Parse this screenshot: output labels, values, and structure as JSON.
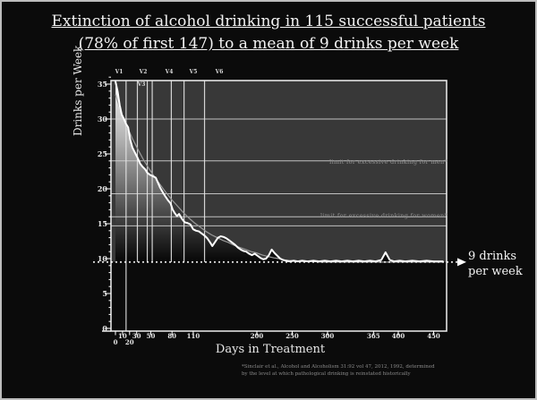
{
  "slide": {
    "title_line1": "Extinction of alcohol drinking in 115 successful patients",
    "title_line2": "(78% of first 147) to a mean of 9 drinks per week"
  },
  "chart_data": {
    "type": "line",
    "title": "Extinction of alcohol drinking in 115 successful patients (78% of first 147) to a mean of 9 drinks per week",
    "xlabel": "Days in Treatment",
    "ylabel": "Drinks per Week",
    "xlim": [
      0,
      465
    ],
    "ylim": [
      0,
      36
    ],
    "grid": "partial",
    "legend": "none",
    "y_ticks": [
      35,
      30,
      25,
      20,
      15,
      10,
      5,
      0
    ],
    "x_ticks": [
      {
        "day": 0,
        "label": "0",
        "row": 2
      },
      {
        "day": 10,
        "label": "10",
        "row": 1
      },
      {
        "day": 20,
        "label": "20",
        "row": 2
      },
      {
        "day": 30,
        "label": "30",
        "row": 1
      },
      {
        "day": 50,
        "label": "50",
        "row": 1
      },
      {
        "day": 80,
        "label": "80",
        "row": 1
      },
      {
        "day": 110,
        "label": "110",
        "row": 1
      },
      {
        "day": 200,
        "label": "200",
        "row": 1
      },
      {
        "day": 250,
        "label": "250",
        "row": 1
      },
      {
        "day": 300,
        "label": "300",
        "row": 1
      },
      {
        "day": 365,
        "label": "365",
        "row": 1
      },
      {
        "day": 400,
        "label": "400",
        "row": 1
      },
      {
        "day": 450,
        "label": "450",
        "row": 1
      }
    ],
    "visit_lines_days": [
      15,
      31,
      45,
      52,
      79,
      97,
      126
    ],
    "visit_labels_top": [
      {
        "text": "V1",
        "x": 131
      },
      {
        "text": "V2",
        "x": 158
      },
      {
        "text": "V4",
        "x": 187
      },
      {
        "text": "V5",
        "x": 214
      },
      {
        "text": "V6",
        "x": 243
      }
    ],
    "visit_label_inner": {
      "text": "V3",
      "x": 156,
      "y": 89
    },
    "gridline_values": [
      30,
      24,
      19.3,
      16,
      14.7
    ],
    "annotations": {
      "men_limit": {
        "text": "limit for excessive drinking for men*",
        "value": 24
      },
      "women_limit": {
        "text": "limit for excessive drinking for women*",
        "value": 16
      },
      "target_line": {
        "value": 9.5,
        "tick_label": "10"
      },
      "callout": {
        "line1": "9 drinks",
        "line2": "per week"
      }
    },
    "series": [
      {
        "name": "weekly mean drinks per week",
        "style": "jagged-white",
        "points": [
          [
            0,
            35.6
          ],
          [
            3,
            34
          ],
          [
            6,
            32
          ],
          [
            9,
            30.6
          ],
          [
            12,
            30
          ],
          [
            15,
            29.3
          ],
          [
            18,
            28.8
          ],
          [
            21,
            27
          ],
          [
            24,
            25.9
          ],
          [
            27,
            25.3
          ],
          [
            31,
            24.5
          ],
          [
            35,
            23.6
          ],
          [
            38,
            23.2
          ],
          [
            42,
            22.8
          ],
          [
            45,
            22.3
          ],
          [
            49,
            22
          ],
          [
            53,
            21.8
          ],
          [
            57,
            21.6
          ],
          [
            60,
            20.9
          ],
          [
            63,
            20.2
          ],
          [
            67,
            19.5
          ],
          [
            70,
            19
          ],
          [
            74,
            18.4
          ],
          [
            78,
            17.9
          ],
          [
            81,
            17
          ],
          [
            84,
            16.5
          ],
          [
            87,
            16.1
          ],
          [
            90,
            16.4
          ],
          [
            94,
            15.7
          ],
          [
            98,
            15.2
          ],
          [
            102,
            15.1
          ],
          [
            106,
            14.9
          ],
          [
            110,
            14.2
          ],
          [
            114,
            14
          ],
          [
            118,
            13.9
          ],
          [
            122,
            13.6
          ],
          [
            126,
            13.3
          ],
          [
            130,
            12.9
          ],
          [
            134,
            12.3
          ],
          [
            137,
            11.8
          ],
          [
            141,
            12.4
          ],
          [
            145,
            13
          ],
          [
            149,
            13.2
          ],
          [
            153,
            13.1
          ],
          [
            157,
            12.9
          ],
          [
            161,
            12.6
          ],
          [
            165,
            12.3
          ],
          [
            169,
            12
          ],
          [
            173,
            11.6
          ],
          [
            177,
            11.3
          ],
          [
            181,
            11.1
          ],
          [
            185,
            11
          ],
          [
            189,
            10.7
          ],
          [
            193,
            10.5
          ],
          [
            197,
            10.7
          ],
          [
            201,
            10.4
          ],
          [
            205,
            10.1
          ],
          [
            209,
            9.9
          ],
          [
            213,
            10
          ],
          [
            217,
            10.5
          ],
          [
            221,
            11.3
          ],
          [
            225,
            10.8
          ],
          [
            229,
            10.4
          ],
          [
            233,
            10
          ],
          [
            237,
            9.8
          ],
          [
            241,
            9.7
          ],
          [
            246,
            9.6
          ],
          [
            252,
            9.7
          ],
          [
            258,
            9.6
          ],
          [
            264,
            9.7
          ],
          [
            272,
            9.6
          ],
          [
            280,
            9.7
          ],
          [
            288,
            9.6
          ],
          [
            296,
            9.7
          ],
          [
            304,
            9.6
          ],
          [
            312,
            9.7
          ],
          [
            320,
            9.6
          ],
          [
            328,
            9.7
          ],
          [
            336,
            9.6
          ],
          [
            344,
            9.7
          ],
          [
            352,
            9.6
          ],
          [
            360,
            9.7
          ],
          [
            368,
            9.6
          ],
          [
            376,
            9.8
          ],
          [
            382,
            10.9
          ],
          [
            388,
            9.8
          ],
          [
            394,
            9.6
          ],
          [
            402,
            9.7
          ],
          [
            410,
            9.6
          ],
          [
            420,
            9.7
          ],
          [
            430,
            9.6
          ],
          [
            440,
            9.7
          ],
          [
            450,
            9.6
          ],
          [
            463,
            9.6
          ]
        ]
      },
      {
        "name": "smoothed trend",
        "style": "smooth-gray",
        "points": [
          [
            0,
            33.5
          ],
          [
            8,
            31
          ],
          [
            16,
            29
          ],
          [
            24,
            27.2
          ],
          [
            32,
            25.6
          ],
          [
            40,
            24.1
          ],
          [
            48,
            22.8
          ],
          [
            56,
            21.6
          ],
          [
            64,
            20.5
          ],
          [
            72,
            19.4
          ],
          [
            80,
            18.4
          ],
          [
            88,
            17.5
          ],
          [
            96,
            16.6
          ],
          [
            104,
            15.8
          ],
          [
            112,
            15.1
          ],
          [
            120,
            14.5
          ],
          [
            128,
            13.9
          ],
          [
            136,
            13.4
          ],
          [
            144,
            13
          ],
          [
            152,
            12.6
          ],
          [
            160,
            12.3
          ],
          [
            168,
            11.9
          ],
          [
            176,
            11.6
          ],
          [
            184,
            11.3
          ],
          [
            192,
            11
          ],
          [
            200,
            10.8
          ],
          [
            208,
            10.5
          ],
          [
            216,
            10.3
          ],
          [
            224,
            10.1
          ],
          [
            232,
            10
          ],
          [
            240,
            9.8
          ],
          [
            250,
            9.7
          ],
          [
            262,
            9.6
          ],
          [
            276,
            9.6
          ],
          [
            292,
            9.5
          ],
          [
            310,
            9.5
          ],
          [
            340,
            9.5
          ],
          [
            380,
            9.5
          ],
          [
            420,
            9.5
          ],
          [
            463,
            9.5
          ]
        ]
      }
    ]
  },
  "colors": {
    "slide_bg": "#0b0b0b",
    "plot_bg": "#383838",
    "main_line": "#ffffff",
    "trend_line": "#9a9a9a",
    "grid": "#d8d8d8",
    "annotation_text": "#8e8e8e"
  },
  "footnote": {
    "line1": "*Sinclair et al., Alcohol and Alcoholism 31:92 vol 47, 2012, 1992, determined",
    "line2": "by the level at which pathological drinking is reinstated historically"
  }
}
